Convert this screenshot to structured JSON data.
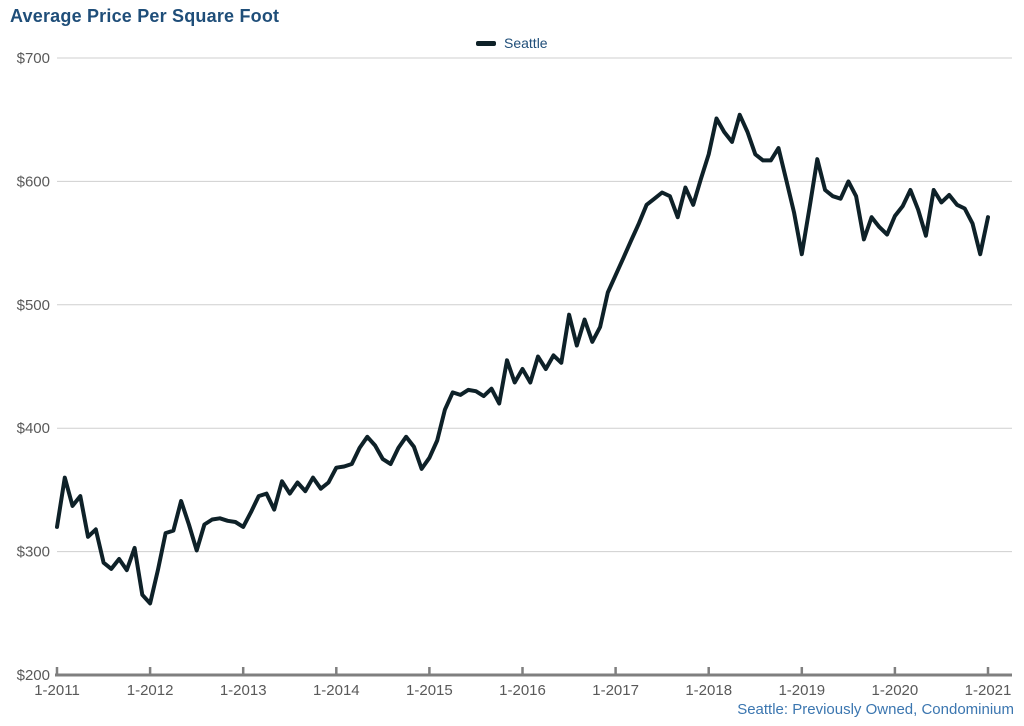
{
  "header": {
    "title": "Average Price Per Square Foot"
  },
  "legend": {
    "label": "Seattle"
  },
  "footer": {
    "note": "Seattle: Previously Owned, Condominium"
  },
  "colors": {
    "title": "#1f4e79",
    "legend_text": "#1f4e79",
    "line": "#0e2128",
    "grid": "#cfcfcf",
    "axis": "#7f7f7f",
    "tick_label": "#595959",
    "footer": "#3b76b0"
  },
  "chart_data": {
    "type": "line",
    "title": "Average Price Per Square Foot",
    "xlabel": "",
    "ylabel": "",
    "ylim": [
      200,
      700
    ],
    "y_ticks": [
      200,
      300,
      400,
      500,
      600,
      700
    ],
    "y_tick_labels": [
      "$200",
      "$300",
      "$400",
      "$500",
      "$600",
      "$700"
    ],
    "x_tick_labels": [
      "1-2011",
      "1-2012",
      "1-2013",
      "1-2014",
      "1-2015",
      "1-2016",
      "1-2017",
      "1-2018",
      "1-2019",
      "1-2020",
      "1-2021"
    ],
    "x_interval": "monthly",
    "x_start": "1-2011",
    "x_end": "1-2021",
    "grid": "horizontal",
    "legend_position": "top-center",
    "series": [
      {
        "name": "Seattle",
        "values": [
          320,
          360,
          337,
          345,
          312,
          318,
          291,
          286,
          294,
          285,
          303,
          265,
          258,
          285,
          315,
          317,
          341,
          322,
          301,
          322,
          326,
          327,
          325,
          324,
          320,
          332,
          345,
          347,
          334,
          357,
          347,
          356,
          349,
          360,
          351,
          356,
          368,
          369,
          371,
          384,
          393,
          386,
          375,
          371,
          384,
          393,
          385,
          367,
          376,
          390,
          415,
          429,
          427,
          431,
          430,
          426,
          432,
          420,
          455,
          437,
          448,
          437,
          458,
          448,
          459,
          453,
          492,
          467,
          488,
          470,
          482,
          510,
          524,
          538,
          552,
          566,
          581,
          586,
          591,
          588,
          571,
          595,
          581,
          602,
          622,
          651,
          640,
          632,
          654,
          640,
          622,
          617,
          617,
          627,
          601,
          575,
          541,
          579,
          618,
          593,
          588,
          586,
          600,
          588,
          553,
          571,
          563,
          557,
          572,
          580,
          593,
          577,
          556,
          593,
          583,
          589,
          581,
          578,
          566,
          541,
          571
        ]
      }
    ]
  }
}
